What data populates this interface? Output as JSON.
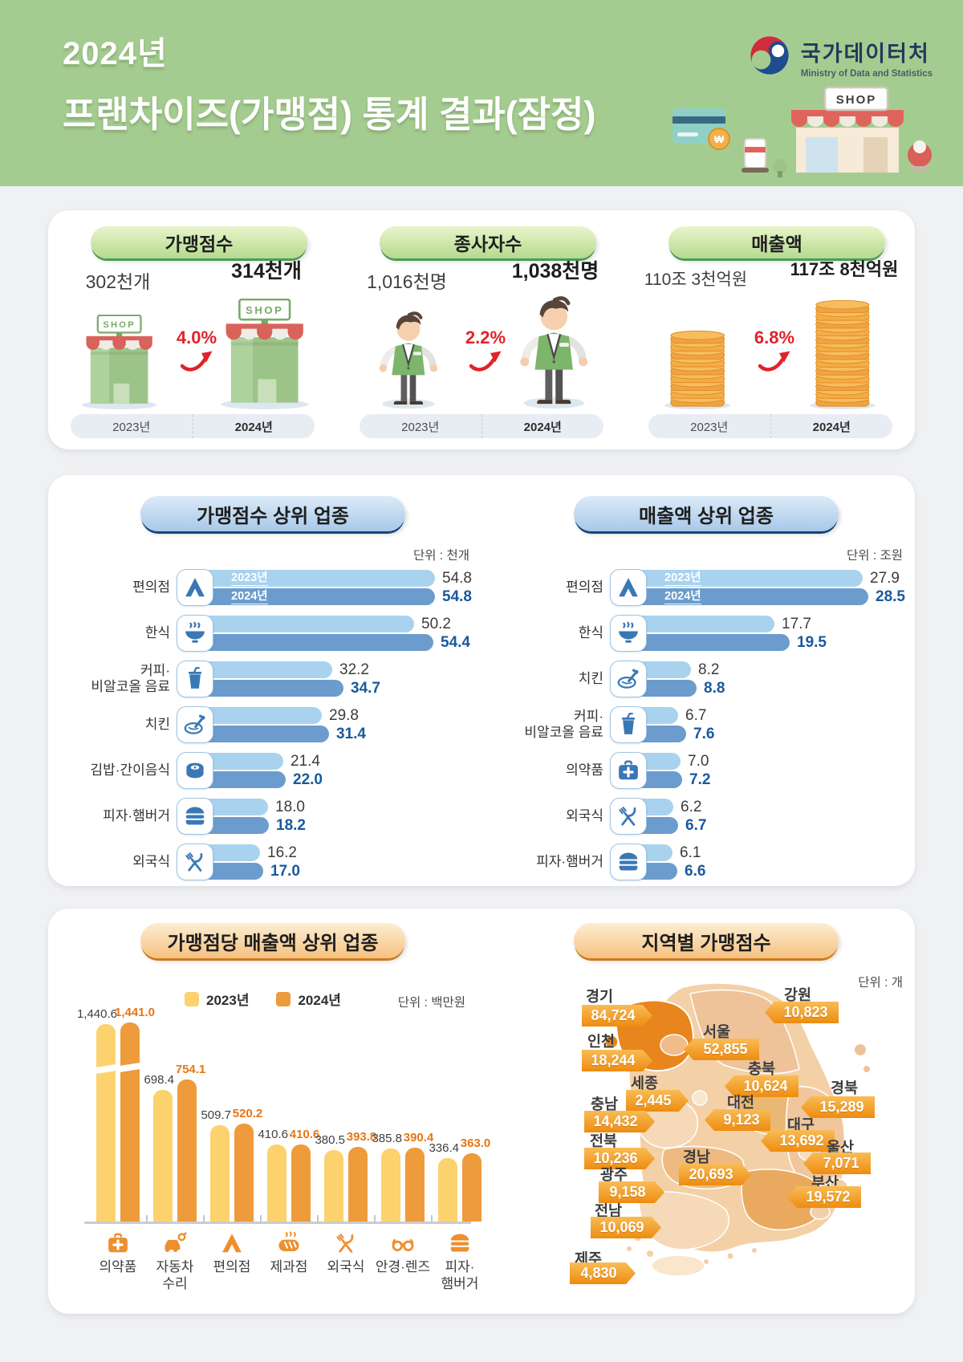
{
  "header": {
    "title_line1": "2024년",
    "title_line2": "프랜차이즈(가맹점) 통계 결과(잠정)",
    "agency_name": "국가데이터처",
    "agency_subtitle": "Ministry of Data and Statistics",
    "illustration_sign": "SHOP",
    "background_color": "#a5cc90"
  },
  "summary": {
    "year_labels": [
      "2023년",
      "2024년"
    ],
    "cards": [
      {
        "title": "가맹점수",
        "icon": "storefront-icon",
        "value_2023": "302천개",
        "value_2024": "314천개",
        "change_pct": "4.0%"
      },
      {
        "title": "종사자수",
        "icon": "worker-icon",
        "value_2023": "1,016천명",
        "value_2024": "1,038천명",
        "change_pct": "2.2%"
      },
      {
        "title": "매출액",
        "icon": "coin-stack-icon",
        "value_2023": "110조 3천억원",
        "value_2024": "117조 8천억원",
        "change_pct": "6.8%"
      }
    ]
  },
  "chart_data": [
    {
      "type": "bar",
      "orientation": "horizontal",
      "title": "가맹점수 상위 업종",
      "unit_label": "단위 : 천개",
      "series": [
        {
          "name": "2023년",
          "color": "#a9d2ee"
        },
        {
          "name": "2024년",
          "color": "#6b9ccd"
        }
      ],
      "categories": [
        "편의점",
        "한식",
        "커피·\n비알코올 음료",
        "치킨",
        "김밥·간이음식",
        "피자·햄버거",
        "외국식"
      ],
      "icons": [
        "tent-icon",
        "bowl-icon",
        "drink-icon",
        "chicken-icon",
        "gimbap-icon",
        "burger-icon",
        "cutlery-icon"
      ],
      "values_2023": [
        54.8,
        50.2,
        32.2,
        29.8,
        21.4,
        18.0,
        16.2
      ],
      "values_2024": [
        54.8,
        54.4,
        34.7,
        31.4,
        22.0,
        18.2,
        17.0
      ],
      "xlim": [
        0,
        54.8
      ],
      "first_row_inline_year_labels": true
    },
    {
      "type": "bar",
      "orientation": "horizontal",
      "title": "매출액 상위 업종",
      "unit_label": "단위 : 조원",
      "series": [
        {
          "name": "2023년",
          "color": "#a9d2ee"
        },
        {
          "name": "2024년",
          "color": "#6b9ccd"
        }
      ],
      "categories": [
        "편의점",
        "한식",
        "치킨",
        "커피·\n비알코올 음료",
        "의약품",
        "외국식",
        "피자·햄버거"
      ],
      "icons": [
        "tent-icon",
        "bowl-icon",
        "chicken-icon",
        "drink-icon",
        "medkit-icon",
        "cutlery-icon",
        "burger-icon"
      ],
      "values_2023": [
        27.9,
        17.7,
        8.2,
        6.7,
        7.0,
        6.2,
        6.1
      ],
      "values_2024": [
        28.5,
        19.5,
        8.8,
        7.6,
        7.2,
        6.7,
        6.6
      ],
      "xlim": [
        0,
        28.5
      ],
      "first_row_inline_year_labels": true
    },
    {
      "type": "bar",
      "orientation": "vertical",
      "title": "가맹점당 매출액 상위 업종",
      "unit_label": "단위 : 백만원",
      "legend": [
        {
          "name": "2023년",
          "color": "#fbd26d"
        },
        {
          "name": "2024년",
          "color": "#ee9b3c"
        }
      ],
      "categories": [
        "의약품",
        "자동차\n수리",
        "편의점",
        "제과점",
        "외국식",
        "안경·렌즈",
        "피자·\n햄버거"
      ],
      "icons": [
        "medkit-icon",
        "car-repair-icon",
        "tent-icon",
        "bread-icon",
        "cutlery-icon",
        "glasses-icon",
        "burger-icon"
      ],
      "values_2023": [
        1440.6,
        698.4,
        509.7,
        410.6,
        380.5,
        385.8,
        336.4
      ],
      "values_2024": [
        1441.0,
        754.1,
        520.2,
        410.6,
        393.8,
        390.4,
        363.0
      ],
      "value_labels_2023": [
        "1,440.6",
        "698.4",
        "509.7",
        "410.6",
        "380.5",
        "385.8",
        "336.4"
      ],
      "value_labels_2024": [
        "1,441.0",
        "754.1",
        "520.2",
        "410.6",
        "393.8",
        "390.4",
        "363.0"
      ],
      "axis_break_on_first_group": true
    },
    {
      "type": "map",
      "title": "지역별 가맹점수",
      "unit_label": "단위 : 개",
      "regions": [
        {
          "name": "경기",
          "value": "84,724"
        },
        {
          "name": "강원",
          "value": "10,823"
        },
        {
          "name": "서울",
          "value": "52,855"
        },
        {
          "name": "인천",
          "value": "18,244"
        },
        {
          "name": "충북",
          "value": "10,624"
        },
        {
          "name": "경북",
          "value": "15,289"
        },
        {
          "name": "세종",
          "value": "2,445"
        },
        {
          "name": "대전",
          "value": "9,123"
        },
        {
          "name": "충남",
          "value": "14,432"
        },
        {
          "name": "대구",
          "value": "13,692"
        },
        {
          "name": "전북",
          "value": "10,236"
        },
        {
          "name": "울산",
          "value": "7,071"
        },
        {
          "name": "경남",
          "value": "20,693"
        },
        {
          "name": "광주",
          "value": "9,158"
        },
        {
          "name": "부산",
          "value": "19,572"
        },
        {
          "name": "전남",
          "value": "10,069"
        },
        {
          "name": "제주",
          "value": "4,830"
        }
      ]
    }
  ],
  "colors": {
    "header_green": "#a5cc90",
    "bar_2023_blue": "#a9d2ee",
    "bar_2024_blue": "#6b9ccd",
    "value_2024_blue": "#19599c",
    "bar_2023_yellow": "#fbd26d",
    "bar_2024_orange": "#ee9b3c",
    "value_2024_orange": "#e87511",
    "change_red": "#e0232c",
    "map_tag_orange": "#ee8c10"
  }
}
